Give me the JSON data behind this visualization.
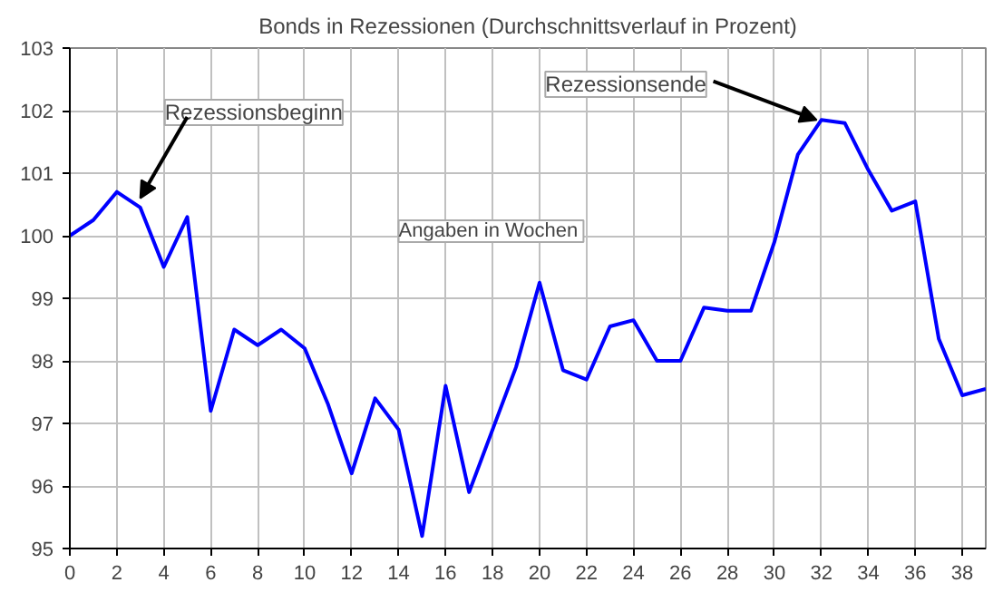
{
  "chart_data": {
    "type": "line",
    "title": "Bonds in Rezessionen (Durchschnittsverlauf in Prozent)",
    "x": [
      0,
      1,
      2,
      3,
      4,
      5,
      6,
      7,
      8,
      9,
      10,
      11,
      12,
      13,
      14,
      15,
      16,
      17,
      18,
      19,
      20,
      21,
      22,
      23,
      24,
      25,
      26,
      27,
      28,
      29,
      30,
      31,
      32,
      33,
      34,
      35,
      36,
      37,
      38,
      39
    ],
    "series": [
      {
        "color": "#0000ff",
        "values": [
          100.0,
          100.25,
          100.7,
          100.45,
          99.5,
          100.3,
          97.2,
          98.5,
          98.25,
          98.5,
          98.2,
          97.3,
          96.2,
          97.4,
          96.9,
          95.2,
          97.6,
          95.9,
          96.9,
          97.9,
          99.25,
          97.85,
          97.7,
          98.55,
          98.65,
          98.0,
          98.0,
          98.85,
          98.8,
          98.8,
          99.9,
          101.3,
          101.85,
          101.8,
          101.05,
          100.4,
          100.55,
          98.35,
          97.45,
          97.55
        ]
      }
    ],
    "xlim": [
      0,
      39
    ],
    "xticks": [
      0,
      2,
      4,
      6,
      8,
      10,
      12,
      14,
      16,
      18,
      20,
      22,
      24,
      26,
      28,
      30,
      32,
      34,
      36,
      38
    ],
    "ylim": [
      95,
      103
    ],
    "yticks": [
      95,
      96,
      97,
      98,
      99,
      100,
      101,
      102,
      103
    ],
    "grid": true,
    "marker": "none",
    "line_style": "solid",
    "annotations": [
      {
        "text": "Rezessionsbeginn",
        "x": 3,
        "y": 100.6
      },
      {
        "text": "Rezessionsende",
        "x": 31.8,
        "y": 101.85
      },
      "Angaben  in Wochen"
    ]
  }
}
